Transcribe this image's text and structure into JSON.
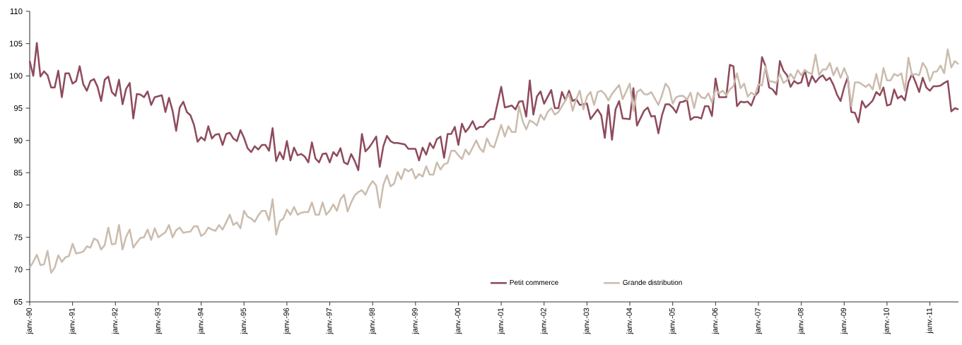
{
  "chart_data": {
    "type": "line",
    "legend": "bottom",
    "xlim": [
      "1990-01",
      "2011-09"
    ],
    "ylim": [
      65,
      110
    ],
    "xticks": [
      {
        "value": "1990-01",
        "label": "janv.-90"
      },
      {
        "value": "1991-01",
        "label": "janv.-91"
      },
      {
        "value": "1992-01",
        "label": "janv.-92"
      },
      {
        "value": "1993-01",
        "label": "janv.-93"
      },
      {
        "value": "1994-01",
        "label": "janv.-94"
      },
      {
        "value": "1995-01",
        "label": "janv.-95"
      },
      {
        "value": "1996-01",
        "label": "janv.-96"
      },
      {
        "value": "1997-01",
        "label": "janv.-97"
      },
      {
        "value": "1998-01",
        "label": "janv.-98"
      },
      {
        "value": "1999-01",
        "label": "janv.-99"
      },
      {
        "value": "2000-01",
        "label": "janv.-00"
      },
      {
        "value": "2001-01",
        "label": "janv.-01"
      },
      {
        "value": "2002-01",
        "label": "janv.-02"
      },
      {
        "value": "2003-01",
        "label": "janv.-03"
      },
      {
        "value": "2004-01",
        "label": "janv.-04"
      },
      {
        "value": "2005-01",
        "label": "janv.-05"
      },
      {
        "value": "2006-01",
        "label": "janv.-06"
      },
      {
        "value": "2007-01",
        "label": "janv.-07"
      },
      {
        "value": "2008-01",
        "label": "janv.-08"
      },
      {
        "value": "2009-01",
        "label": "janv.-09"
      },
      {
        "value": "2010-01",
        "label": "janv.-10"
      },
      {
        "value": "2011-01",
        "label": "janv.-11"
      }
    ],
    "yticks": [
      65,
      70,
      75,
      80,
      85,
      90,
      95,
      100,
      105,
      110
    ],
    "series": [
      {
        "name": "Petit commerce",
        "color": "#8e4b5c",
        "x": [
          "1990-01",
          "1990-02",
          "1990-03",
          "1990-04",
          "1990-05",
          "1990-06",
          "1990-07",
          "1990-08",
          "1990-09",
          "1990-10",
          "1990-11",
          "1990-12",
          "1991-01",
          "1991-02",
          "1991-03",
          "1991-04",
          "1991-05",
          "1991-06",
          "1991-07",
          "1991-08",
          "1991-09",
          "1991-10",
          "1991-11",
          "1991-12",
          "1992-01",
          "1992-02",
          "1992-03",
          "1992-04",
          "1992-05",
          "1992-06",
          "1992-07",
          "1992-08",
          "1992-09",
          "1992-10",
          "1992-11",
          "1992-12",
          "1993-02",
          "1993-03",
          "1993-04",
          "1993-05",
          "1993-06",
          "1993-07",
          "1993-08",
          "1993-09",
          "1993-10",
          "1993-11",
          "1993-12",
          "1994-01",
          "1994-02",
          "1994-03",
          "1994-04",
          "1994-05",
          "1994-06",
          "1994-07",
          "1994-08",
          "1994-09",
          "1994-10",
          "1994-11",
          "1994-12",
          "1995-01",
          "1995-02",
          "1995-03",
          "1995-04",
          "1995-05",
          "1995-06",
          "1995-07",
          "1995-08",
          "1995-09",
          "1995-10",
          "1995-11",
          "1995-12",
          "1996-01",
          "1996-02",
          "1996-03",
          "1996-04",
          "1996-05",
          "1996-06",
          "1996-07",
          "1996-08",
          "1996-09",
          "1996-10",
          "1996-11",
          "1996-12",
          "1997-01",
          "1997-02",
          "1997-03",
          "1997-04",
          "1997-05",
          "1997-06",
          "1997-07",
          "1997-08",
          "1997-09",
          "1997-10",
          "1997-11",
          "1997-12",
          "1998-01",
          "1998-02",
          "1998-03",
          "1998-04",
          "1998-05",
          "1998-06",
          "1998-07",
          "1998-08",
          "1998-09",
          "1998-10",
          "1998-11",
          "1998-12",
          "1999-01",
          "1999-02",
          "1999-03",
          "1999-04",
          "1999-05",
          "1999-06",
          "1999-07",
          "1999-08",
          "1999-09",
          "1999-10",
          "1999-11",
          "1999-12",
          "2000-01",
          "2000-02",
          "2000-03",
          "2000-04",
          "2000-05",
          "2000-06",
          "2000-07",
          "2000-08",
          "2000-09",
          "2000-10",
          "2000-11",
          "2001-01",
          "2001-02",
          "2001-04",
          "2001-05",
          "2001-06",
          "2001-07",
          "2001-08",
          "2001-09",
          "2001-10",
          "2001-11",
          "2001-12",
          "2002-01",
          "2002-03",
          "2002-04",
          "2002-05",
          "2002-06",
          "2002-07",
          "2002-08",
          "2002-09",
          "2002-10",
          "2002-11",
          "2003-01",
          "2003-02",
          "2003-04",
          "2003-05",
          "2003-06",
          "2003-07",
          "2003-08",
          "2003-09",
          "2003-10",
          "2003-11",
          "2004-01",
          "2004-02",
          "2004-03",
          "2004-05",
          "2004-06",
          "2004-07",
          "2004-08",
          "2004-09",
          "2004-10",
          "2004-11",
          "2004-12",
          "2005-01",
          "2005-02",
          "2005-03",
          "2005-04",
          "2005-05",
          "2005-06",
          "2005-07",
          "2005-08",
          "2005-09",
          "2005-10",
          "2005-11",
          "2005-12",
          "2006-01",
          "2006-02",
          "2006-03",
          "2006-04",
          "2006-05",
          "2006-06",
          "2006-07",
          "2006-08",
          "2006-09",
          "2006-10",
          "2006-11",
          "2006-12",
          "2007-01",
          "2007-02",
          "2007-03",
          "2007-04",
          "2007-05",
          "2007-06",
          "2007-07",
          "2007-08",
          "2007-09",
          "2007-10",
          "2007-11",
          "2007-12",
          "2008-01",
          "2008-02",
          "2008-03",
          "2008-04",
          "2008-05",
          "2008-06",
          "2008-07",
          "2008-08",
          "2008-09",
          "2008-10",
          "2008-11",
          "2008-12",
          "2009-01",
          "2009-02",
          "2009-03",
          "2009-04",
          "2009-05",
          "2009-06",
          "2009-07",
          "2009-08",
          "2009-09",
          "2009-10",
          "2009-11",
          "2009-12",
          "2010-01",
          "2010-02",
          "2010-03",
          "2010-04",
          "2010-05",
          "2010-06",
          "2010-07",
          "2010-08",
          "2010-09",
          "2010-10",
          "2010-11",
          "2010-12",
          "2011-01",
          "2011-02",
          "2011-03",
          "2011-04",
          "2011-05",
          "2011-06",
          "2011-07",
          "2011-08",
          "2011-09"
        ],
        "values": [
          102.3,
          100.0,
          105.1,
          99.9,
          100.7,
          100.1,
          98.2,
          98.2,
          100.8,
          96.7,
          100.4,
          100.4,
          98.8,
          99.2,
          101.5,
          98.7,
          97.7,
          99.2,
          99.5,
          98.3,
          96.1,
          99.4,
          99.9,
          97.5,
          96.9,
          99.4,
          95.6,
          98.0,
          98.9,
          93.4,
          97.2,
          97.1,
          96.7,
          97.6,
          95.5,
          96.7,
          97.0,
          94.4,
          96.6,
          94.6,
          91.5,
          95.1,
          96.0,
          94.4,
          93.9,
          92.4,
          89.8,
          90.5,
          90.0,
          92.2,
          90.3,
          90.9,
          91.0,
          89.3,
          91.0,
          91.2,
          90.3,
          89.9,
          91.6,
          90.4,
          88.8,
          88.2,
          89.1,
          88.6,
          89.3,
          89.3,
          88.4,
          91.9,
          86.8,
          88.2,
          87.1,
          89.9,
          86.9,
          88.9,
          87.7,
          87.9,
          87.5,
          86.6,
          89.7,
          87.2,
          86.6,
          87.9,
          88.0,
          86.6,
          88.2,
          87.6,
          88.8,
          86.6,
          86.3,
          87.9,
          86.8,
          85.4,
          91.0,
          88.3,
          88.9,
          89.7,
          90.6,
          85.9,
          89.1,
          90.7,
          89.9,
          89.6,
          89.6,
          89.5,
          89.4,
          88.7,
          88.7,
          88.7,
          86.9,
          88.9,
          87.8,
          89.6,
          88.8,
          90.2,
          90.6,
          87.3,
          91.0,
          91.0,
          92.1,
          89.3,
          92.6,
          91.3,
          92.0,
          93.0,
          91.7,
          92.1,
          92.1,
          92.8,
          93.3,
          93.3,
          98.3,
          95.1,
          95.4,
          94.8,
          96.0,
          96.1,
          93.7,
          99.3,
          94.0,
          96.8,
          97.6,
          95.7,
          97.8,
          95.0,
          95.0,
          97.5,
          96.2,
          97.7,
          96.1,
          96.4,
          95.5,
          95.7,
          93.3,
          94.8,
          93.9,
          90.4,
          95.5,
          90.1,
          94.8,
          96.1,
          93.4,
          93.3,
          98.1,
          92.3,
          94.6,
          95.1,
          93.7,
          93.8,
          91.1,
          93.9,
          95.6,
          95.6,
          95.1,
          94.3,
          95.9,
          96.0,
          96.3,
          93.2,
          93.6,
          93.6,
          93.4,
          95.3,
          95.3,
          93.8,
          99.6,
          96.7,
          96.7,
          96.7,
          101.7,
          101.5,
          95.3,
          96.0,
          95.9,
          96.0,
          95.4,
          96.9,
          97.5,
          102.9,
          101.5,
          98.2,
          97.9,
          97.1,
          102.3,
          100.8,
          100.1,
          98.3,
          99.2,
          98.8,
          99.0,
          100.9,
          98.4,
          100.0,
          99.0,
          99.7,
          100.1,
          99.3,
          99.7,
          98.6,
          97.1,
          96.1,
          98.2,
          99.8,
          94.4,
          94.3,
          92.8,
          96.1,
          95.1,
          95.6,
          96.2,
          97.5,
          97.0,
          98.2,
          95.4,
          95.6,
          97.9,
          96.5,
          96.9,
          96.2,
          99.0,
          100.3,
          99.0,
          97.5,
          99.7,
          98.2,
          97.7,
          98.4,
          98.4,
          98.5,
          98.9,
          99.2,
          94.5,
          95.0,
          94.8
        ]
      },
      {
        "name": "Grande distribution",
        "color": "#cbbcae",
        "x": [
          "1990-01",
          "1990-02",
          "1990-03",
          "1990-04",
          "1990-05",
          "1990-06",
          "1990-07",
          "1990-08",
          "1990-09",
          "1990-10",
          "1990-11",
          "1990-12",
          "1991-01",
          "1991-02",
          "1991-03",
          "1991-04",
          "1991-05",
          "1991-06",
          "1991-07",
          "1991-08",
          "1991-09",
          "1991-10",
          "1991-11",
          "1991-12",
          "1992-01",
          "1992-02",
          "1992-03",
          "1992-04",
          "1992-05",
          "1992-06",
          "1992-07",
          "1992-08",
          "1992-09",
          "1992-10",
          "1992-11",
          "1992-12",
          "1993-01",
          "1993-02",
          "1993-03",
          "1993-04",
          "1993-05",
          "1993-06",
          "1993-07",
          "1993-08",
          "1993-09",
          "1993-10",
          "1993-11",
          "1993-12",
          "1994-01",
          "1994-02",
          "1994-03",
          "1994-04",
          "1994-05",
          "1994-06",
          "1994-07",
          "1994-08",
          "1994-09",
          "1994-10",
          "1994-11",
          "1994-12",
          "1995-01",
          "1995-02",
          "1995-03",
          "1995-04",
          "1995-05",
          "1995-06",
          "1995-07",
          "1995-08",
          "1995-09",
          "1995-10",
          "1995-11",
          "1995-12",
          "1996-01",
          "1996-02",
          "1996-03",
          "1996-04",
          "1996-05",
          "1996-06",
          "1996-07",
          "1996-08",
          "1996-09",
          "1996-10",
          "1996-11",
          "1996-12",
          "1997-01",
          "1997-02",
          "1997-03",
          "1997-04",
          "1997-05",
          "1997-06",
          "1997-07",
          "1997-08",
          "1997-09",
          "1997-10",
          "1997-11",
          "1997-12",
          "1998-01",
          "1998-02",
          "1998-03",
          "1998-04",
          "1998-05",
          "1998-06",
          "1998-07",
          "1998-08",
          "1998-09",
          "1998-10",
          "1998-11",
          "1998-12",
          "1999-01",
          "1999-02",
          "1999-03",
          "1999-04",
          "1999-05",
          "1999-06",
          "1999-07",
          "1999-08",
          "1999-09",
          "1999-10",
          "1999-11",
          "1999-12",
          "2000-01",
          "2000-02",
          "2000-03",
          "2000-04",
          "2000-05",
          "2000-06",
          "2000-07",
          "2000-08",
          "2000-09",
          "2000-10",
          "2000-11",
          "2001-01",
          "2001-02",
          "2001-03",
          "2001-04",
          "2001-05",
          "2001-06",
          "2001-07",
          "2001-08",
          "2001-09",
          "2001-10",
          "2001-11",
          "2001-12",
          "2002-01",
          "2002-02",
          "2002-03",
          "2002-04",
          "2002-05",
          "2002-06",
          "2002-08",
          "2002-09",
          "2002-10",
          "2002-11",
          "2002-12",
          "2003-01",
          "2003-02",
          "2003-03",
          "2003-04",
          "2003-05",
          "2003-06",
          "2003-07",
          "2003-08",
          "2003-10",
          "2003-11",
          "2004-01",
          "2004-02",
          "2004-03",
          "2004-04",
          "2004-05",
          "2004-06",
          "2004-07",
          "2004-08",
          "2004-09",
          "2004-10",
          "2004-11",
          "2004-12",
          "2005-01",
          "2005-02",
          "2005-03",
          "2005-04",
          "2005-05",
          "2005-06",
          "2005-07",
          "2005-08",
          "2005-09",
          "2005-10",
          "2005-11",
          "2005-12",
          "2006-01",
          "2006-02",
          "2006-03",
          "2006-04",
          "2006-05",
          "2006-06",
          "2006-07",
          "2006-08",
          "2006-09",
          "2006-10",
          "2006-11",
          "2006-12",
          "2007-01",
          "2007-02",
          "2007-03",
          "2007-04",
          "2007-05",
          "2007-06",
          "2007-07",
          "2007-08",
          "2007-09",
          "2007-10",
          "2007-11",
          "2007-12",
          "2008-01",
          "2008-02",
          "2008-03",
          "2008-04",
          "2008-05",
          "2008-06",
          "2008-07",
          "2008-08",
          "2008-09",
          "2008-10",
          "2008-11",
          "2008-12",
          "2009-01",
          "2009-02",
          "2009-03",
          "2009-04",
          "2009-05",
          "2009-06",
          "2009-07",
          "2009-08",
          "2009-09",
          "2009-10",
          "2009-11",
          "2009-12",
          "2010-01",
          "2010-02",
          "2010-03",
          "2010-04",
          "2010-05",
          "2010-06",
          "2010-07",
          "2010-08",
          "2010-09",
          "2010-10",
          "2010-11",
          "2010-12",
          "2011-01",
          "2011-02",
          "2011-03",
          "2011-04",
          "2011-05",
          "2011-06",
          "2011-07",
          "2011-08",
          "2011-09"
        ],
        "values": [
          70.3,
          71.2,
          72.3,
          70.7,
          70.8,
          72.9,
          69.5,
          70.3,
          72.2,
          71.2,
          71.9,
          72.1,
          74.0,
          72.5,
          72.6,
          72.8,
          73.6,
          73.4,
          74.8,
          74.5,
          73.1,
          73.8,
          76.5,
          73.9,
          74.0,
          76.9,
          73.1,
          75.1,
          76.2,
          73.4,
          74.2,
          74.9,
          75.0,
          76.2,
          74.6,
          76.4,
          75.0,
          75.4,
          75.8,
          76.9,
          75.0,
          76.1,
          76.5,
          75.7,
          75.8,
          75.9,
          76.7,
          76.7,
          75.2,
          75.6,
          76.5,
          76.2,
          76.0,
          76.9,
          76.2,
          77.3,
          78.5,
          76.9,
          77.3,
          76.4,
          79.1,
          78.2,
          77.9,
          77.4,
          78.4,
          79.1,
          79.1,
          77.6,
          80.9,
          75.4,
          77.5,
          77.9,
          79.3,
          78.5,
          79.7,
          78.5,
          78.8,
          78.9,
          78.9,
          80.4,
          78.5,
          78.5,
          80.4,
          78.5,
          79.1,
          80.1,
          79.1,
          80.9,
          81.6,
          79.0,
          80.4,
          81.5,
          82.0,
          82.3,
          81.6,
          82.9,
          83.7,
          83.0,
          79.6,
          83.1,
          84.6,
          82.9,
          83.3,
          85.1,
          84.0,
          85.6,
          85.2,
          85.6,
          84.1,
          84.8,
          84.4,
          86.0,
          84.7,
          84.7,
          86.6,
          85.5,
          86.3,
          86.5,
          88.4,
          88.4,
          87.7,
          87.1,
          88.6,
          87.8,
          88.9,
          90.0,
          88.8,
          88.2,
          90.3,
          89.2,
          88.9,
          92.4,
          90.6,
          92.2,
          91.3,
          91.3,
          95.3,
          93.0,
          91.7,
          93.1,
          92.8,
          92.3,
          94.0,
          93.2,
          94.4,
          95.0,
          94.0,
          94.4,
          95.3,
          97.2,
          94.6,
          96.4,
          97.7,
          94.8,
          96.8,
          97.5,
          95.5,
          97.5,
          97.7,
          97.2,
          96.2,
          97.2,
          98.6,
          96.4,
          98.8,
          94.6,
          97.5,
          97.9,
          97.2,
          97.1,
          97.5,
          96.5,
          95.5,
          97.0,
          98.8,
          98.1,
          95.7,
          96.7,
          96.9,
          96.9,
          96.3,
          97.4,
          95.0,
          97.4,
          96.7,
          96.5,
          97.3,
          95.9,
          97.9,
          97.3,
          97.7,
          97.0,
          97.9,
          98.4,
          100.4,
          98.1,
          98.8,
          96.8,
          97.4,
          97.0,
          98.7,
          98.5,
          101.5,
          99.2,
          99.1,
          98.9,
          100.3,
          98.9,
          99.3,
          100.3,
          99.5,
          100.9,
          100.1,
          100.9,
          100.5,
          100.3,
          103.3,
          100.1,
          101.0,
          101.0,
          102.0,
          100.1,
          101.3,
          99.7,
          101.2,
          99.8,
          95.3,
          99.0,
          99.0,
          98.7,
          98.3,
          98.7,
          97.9,
          100.3,
          97.9,
          101.2,
          99.3,
          99.3,
          100.3,
          100.0,
          100.4,
          97.7,
          102.8,
          100.1,
          100.3,
          100.1,
          102.0,
          101.2,
          99.2,
          100.6,
          100.7,
          101.6,
          100.4,
          104.1,
          101.3,
          102.3,
          101.8
        ]
      }
    ]
  }
}
